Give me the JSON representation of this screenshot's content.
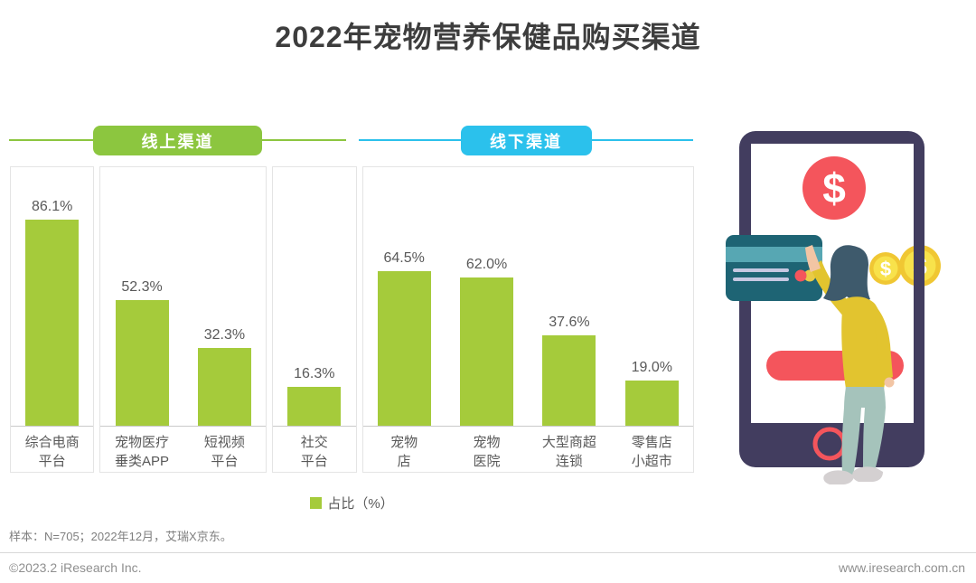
{
  "title": "2022年宠物营养保健品购买渠道",
  "channel_groups": {
    "online": {
      "label": "线上渠道",
      "color": "#8CC63F"
    },
    "offline": {
      "label": "线下渠道",
      "color": "#2BC1EC"
    }
  },
  "chart_data": {
    "type": "bar",
    "title": "2022年宠物营养保健品购买渠道",
    "ylabel": "占比(%)",
    "ylim": [
      0,
      100
    ],
    "grid": false,
    "bar_color": "#A5CB3B",
    "value_suffix": "%",
    "series": [
      {
        "name": "线上渠道",
        "categories": [
          "综合电商平台",
          "宠物医疗垂类APP",
          "短视频平台",
          "社交平台"
        ],
        "category_lines": [
          [
            "综合电商",
            "平台"
          ],
          [
            "宠物医疗",
            "垂类APP"
          ],
          [
            "短视频",
            "平台"
          ],
          [
            "社交",
            "平台"
          ]
        ],
        "values": [
          86.1,
          52.3,
          32.3,
          16.3
        ],
        "panel_grouping": [
          [
            0
          ],
          [
            1,
            2
          ],
          [
            3
          ]
        ]
      },
      {
        "name": "线下渠道",
        "categories": [
          "宠物店",
          "宠物医院",
          "大型商超连锁",
          "零售店小超市"
        ],
        "category_lines": [
          [
            "宠物",
            "店"
          ],
          [
            "宠物",
            "医院"
          ],
          [
            "大型商超",
            "连锁"
          ],
          [
            "零售店",
            "小超市"
          ]
        ],
        "values": [
          64.5,
          62.0,
          37.6,
          19.0
        ],
        "panel_grouping": [
          [
            0,
            1,
            2,
            3
          ]
        ]
      }
    ]
  },
  "legend": {
    "label": "占比（%）",
    "swatch_color": "#A5CB3B"
  },
  "footnote": "样本：N=705；2022年12月，艾瑞X京东。",
  "footer": {
    "copyright": "©2023.2 iResearch Inc.",
    "website": "www.iresearch.com.cn"
  },
  "illustration": {
    "currency_symbol": "$"
  }
}
